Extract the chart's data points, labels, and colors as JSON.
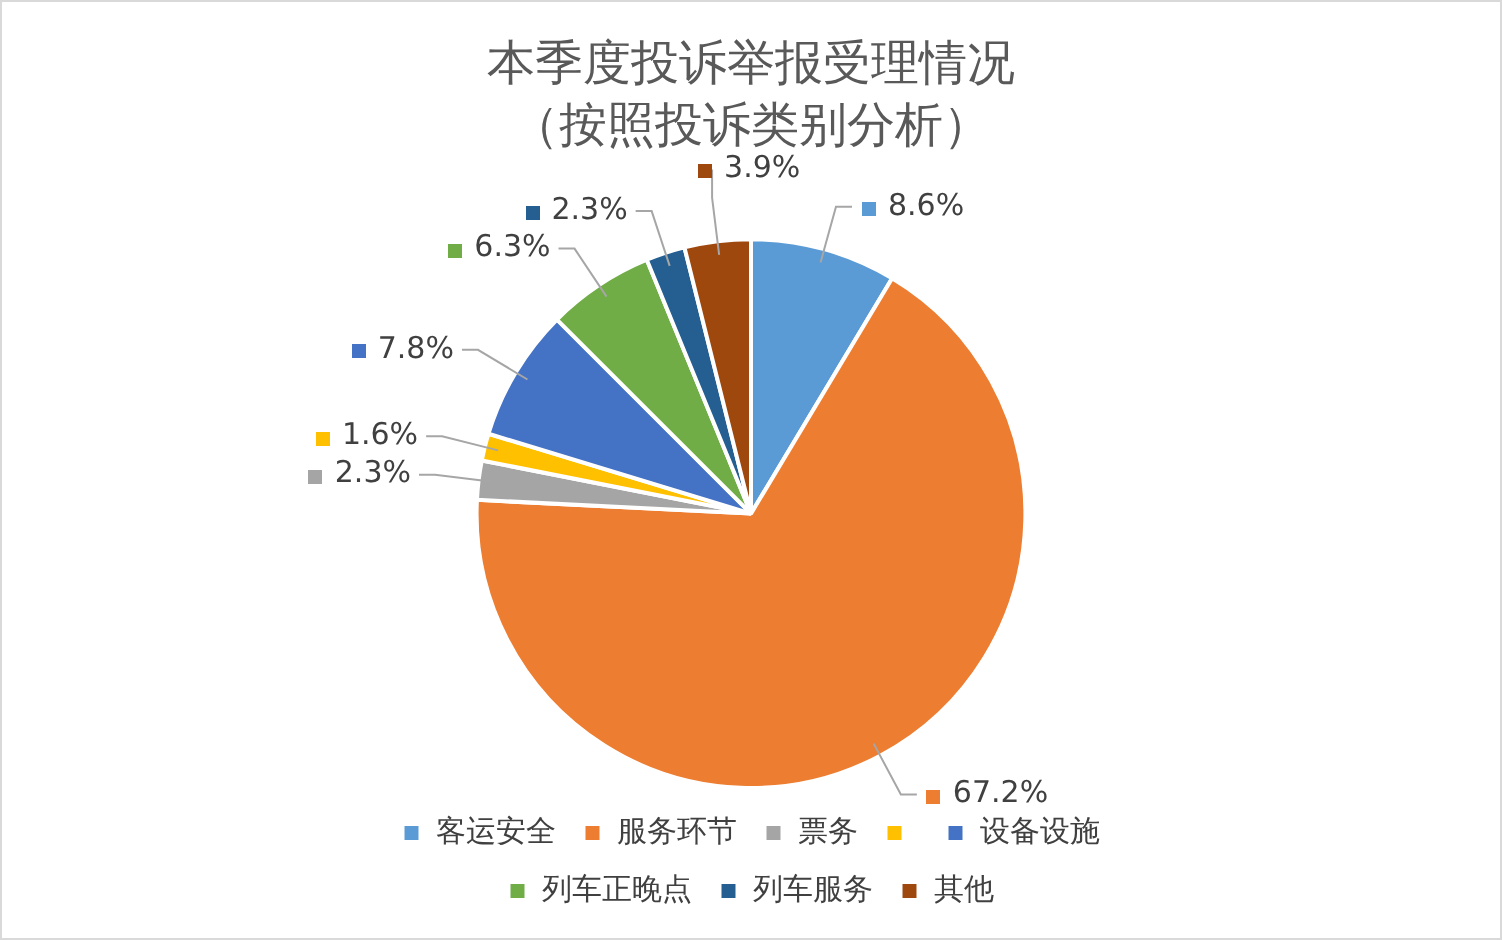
{
  "chart_data": {
    "type": "pie",
    "title": "本季度投诉举报受理情况",
    "subtitle": "（按照投诉类别分析）",
    "categories": [
      "客运安全",
      "服务环节",
      "票务",
      null,
      "设备设施",
      "列车正晚点",
      "列车服务",
      "其他"
    ],
    "values": [
      8.6,
      67.2,
      2.3,
      1.6,
      7.8,
      6.3,
      2.3,
      3.9
    ],
    "value_labels": [
      "8.6%",
      "67.2%",
      "2.3%",
      "1.6%",
      "7.8%",
      "6.3%",
      "2.3%",
      "3.9%"
    ],
    "colors": [
      "#5b9bd5",
      "#ed7d31",
      "#a5a5a5",
      "#ffc000",
      "#4472c4",
      "#70ad47",
      "#255e91",
      "#9e480e"
    ],
    "legend": "bottom"
  }
}
